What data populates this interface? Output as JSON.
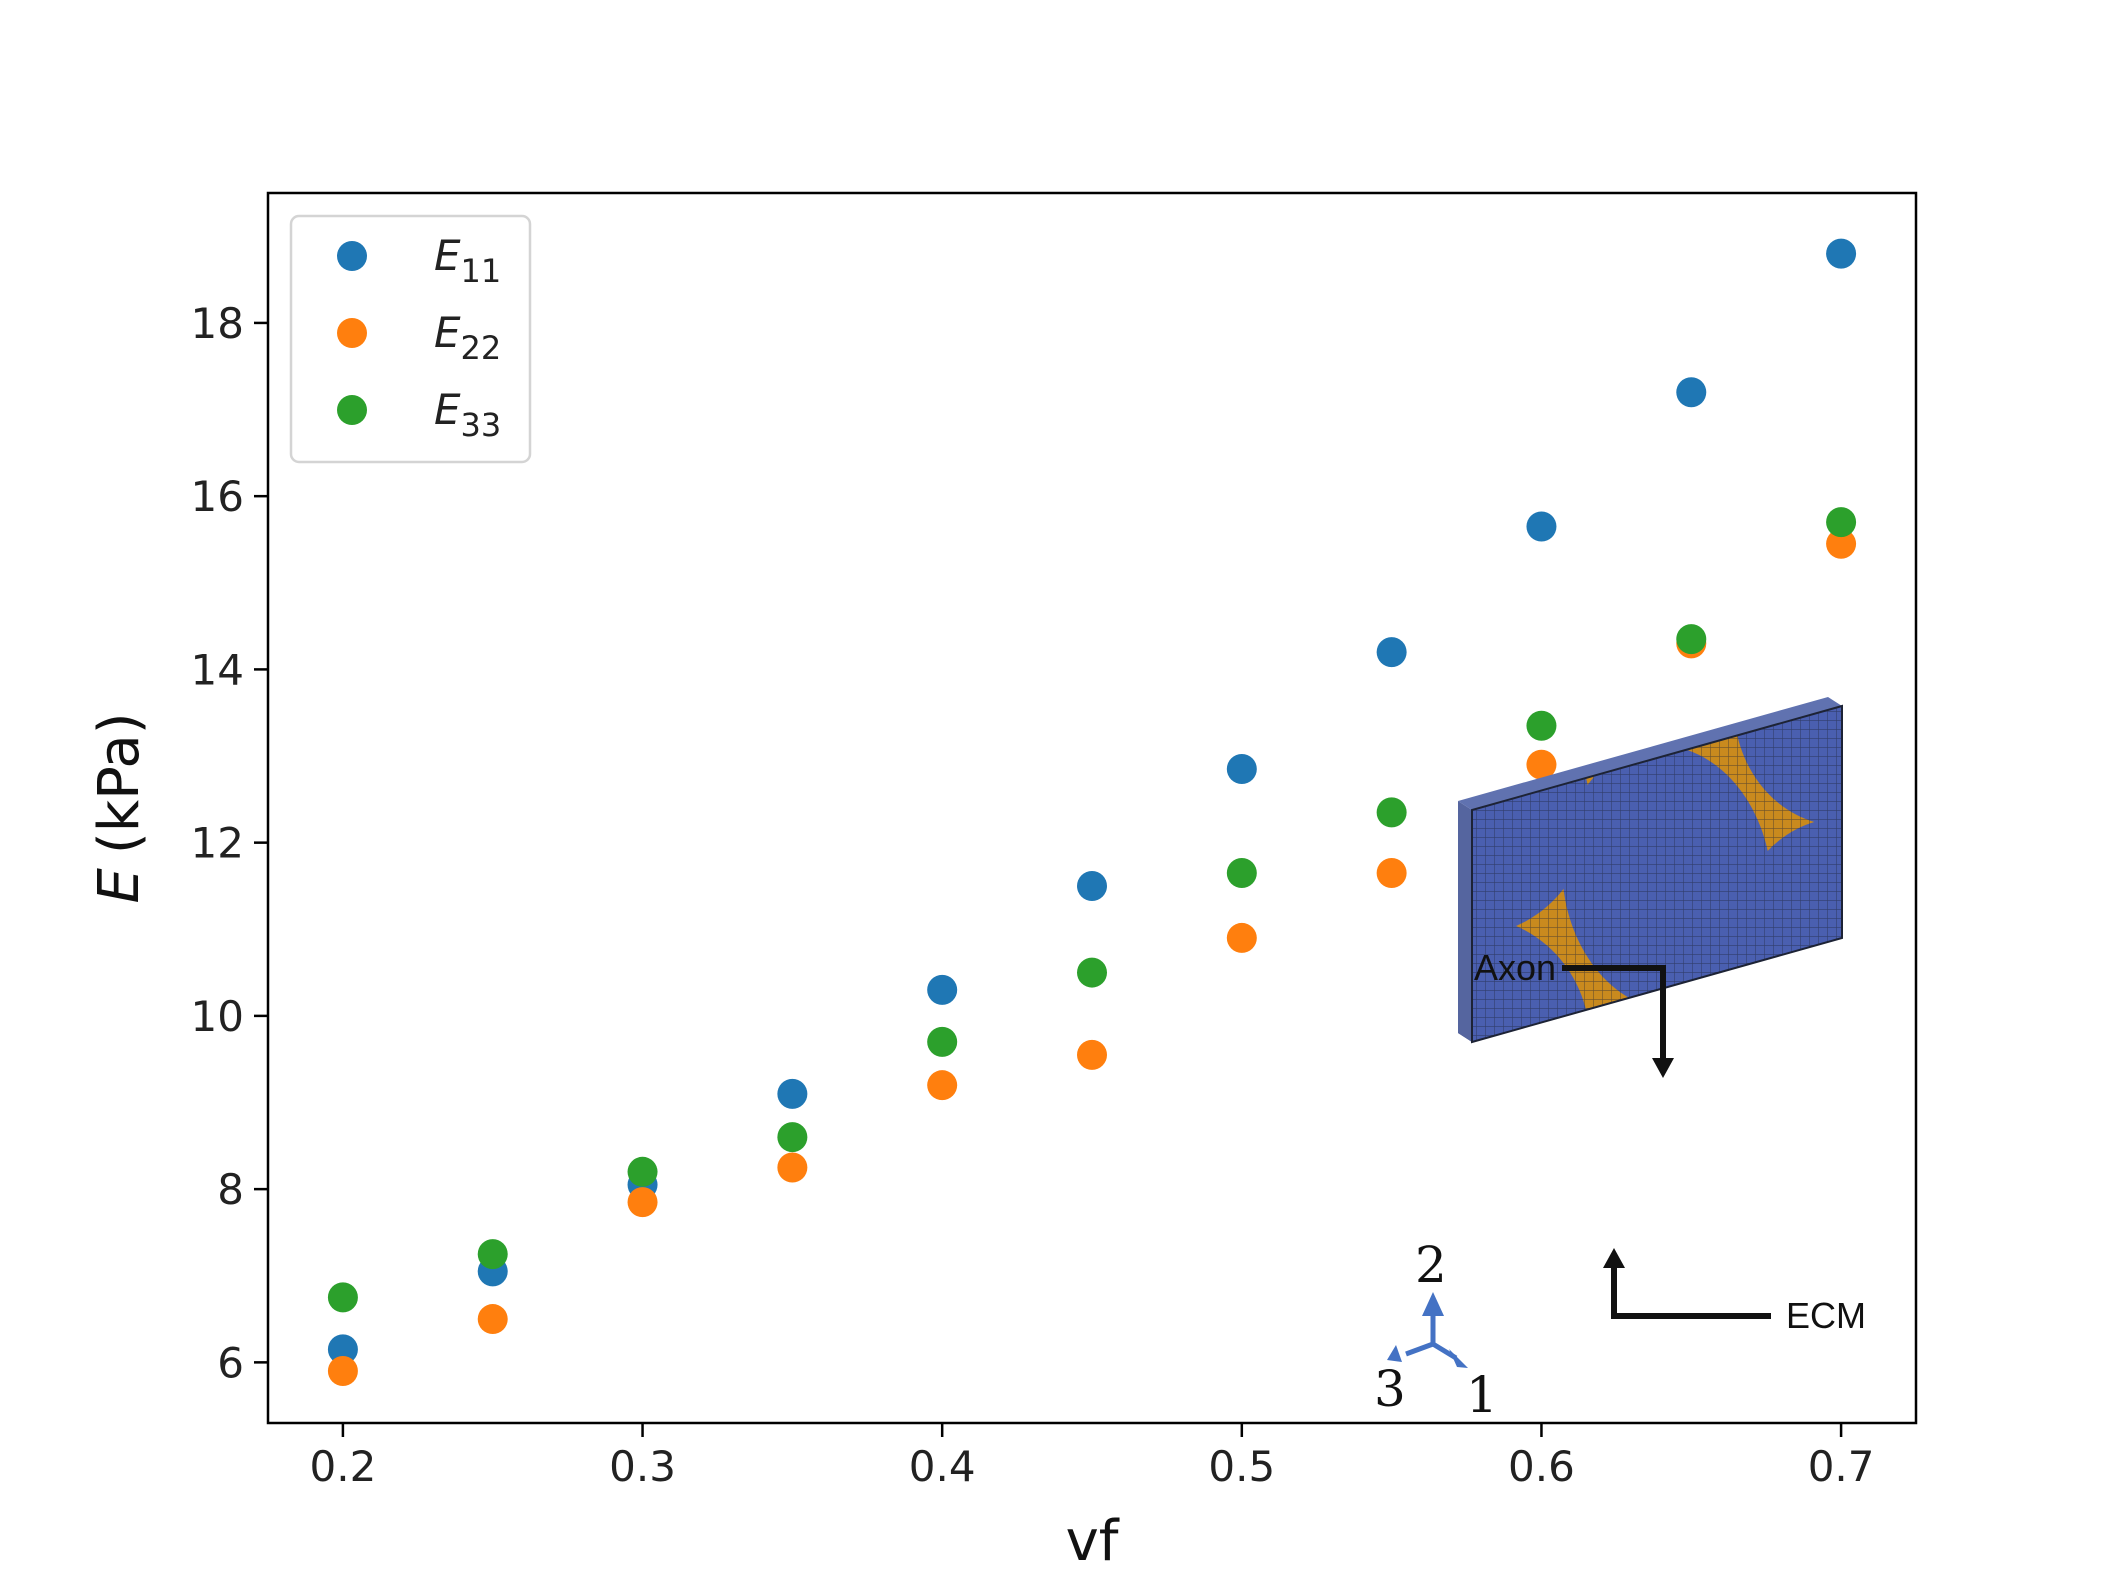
{
  "chart_data": {
    "type": "scatter",
    "x": [
      0.2,
      0.25,
      0.3,
      0.35,
      0.4,
      0.45,
      0.5,
      0.55,
      0.6,
      0.65,
      0.7
    ],
    "xlabel": "vf",
    "ylabel_symbol": "E",
    "ylabel_unit": "(kPa)",
    "xlim": [
      0.175,
      0.725
    ],
    "ylim": [
      5.3,
      19.5
    ],
    "xticks": [
      0.2,
      0.3,
      0.4,
      0.5,
      0.6,
      0.7
    ],
    "xtick_labels": [
      "0.2",
      "0.3",
      "0.4",
      "0.5",
      "0.6",
      "0.7"
    ],
    "yticks": [
      6,
      8,
      10,
      12,
      14,
      16,
      18
    ],
    "ytick_labels": [
      "6",
      "8",
      "10",
      "12",
      "14",
      "16",
      "18"
    ],
    "grid": false,
    "legend_position": "top-left",
    "series": [
      {
        "name": "E11",
        "symbol": "E",
        "subscript": "11",
        "color": "#1f77b4",
        "values": [
          6.15,
          7.05,
          8.05,
          9.1,
          10.3,
          11.5,
          12.85,
          14.2,
          15.65,
          17.2,
          18.8
        ]
      },
      {
        "name": "E22",
        "symbol": "E",
        "subscript": "22",
        "color": "#ff7f0e",
        "values": [
          5.9,
          6.5,
          7.85,
          8.25,
          9.2,
          9.55,
          10.9,
          11.65,
          12.9,
          14.3,
          15.45
        ]
      },
      {
        "name": "E33",
        "symbol": "E",
        "subscript": "33",
        "color": "#2ca02c",
        "values": [
          6.75,
          7.25,
          8.2,
          8.6,
          9.7,
          10.5,
          11.65,
          12.35,
          13.35,
          14.35,
          15.7
        ]
      }
    ]
  },
  "inset": {
    "axon_label": "Axon",
    "ecm_label": "ECM",
    "axis_labels": [
      "1",
      "2",
      "3"
    ],
    "colors": {
      "axon": "#4a5fb0",
      "ecm": "#c98a1e",
      "triad": "#4472c4"
    }
  }
}
